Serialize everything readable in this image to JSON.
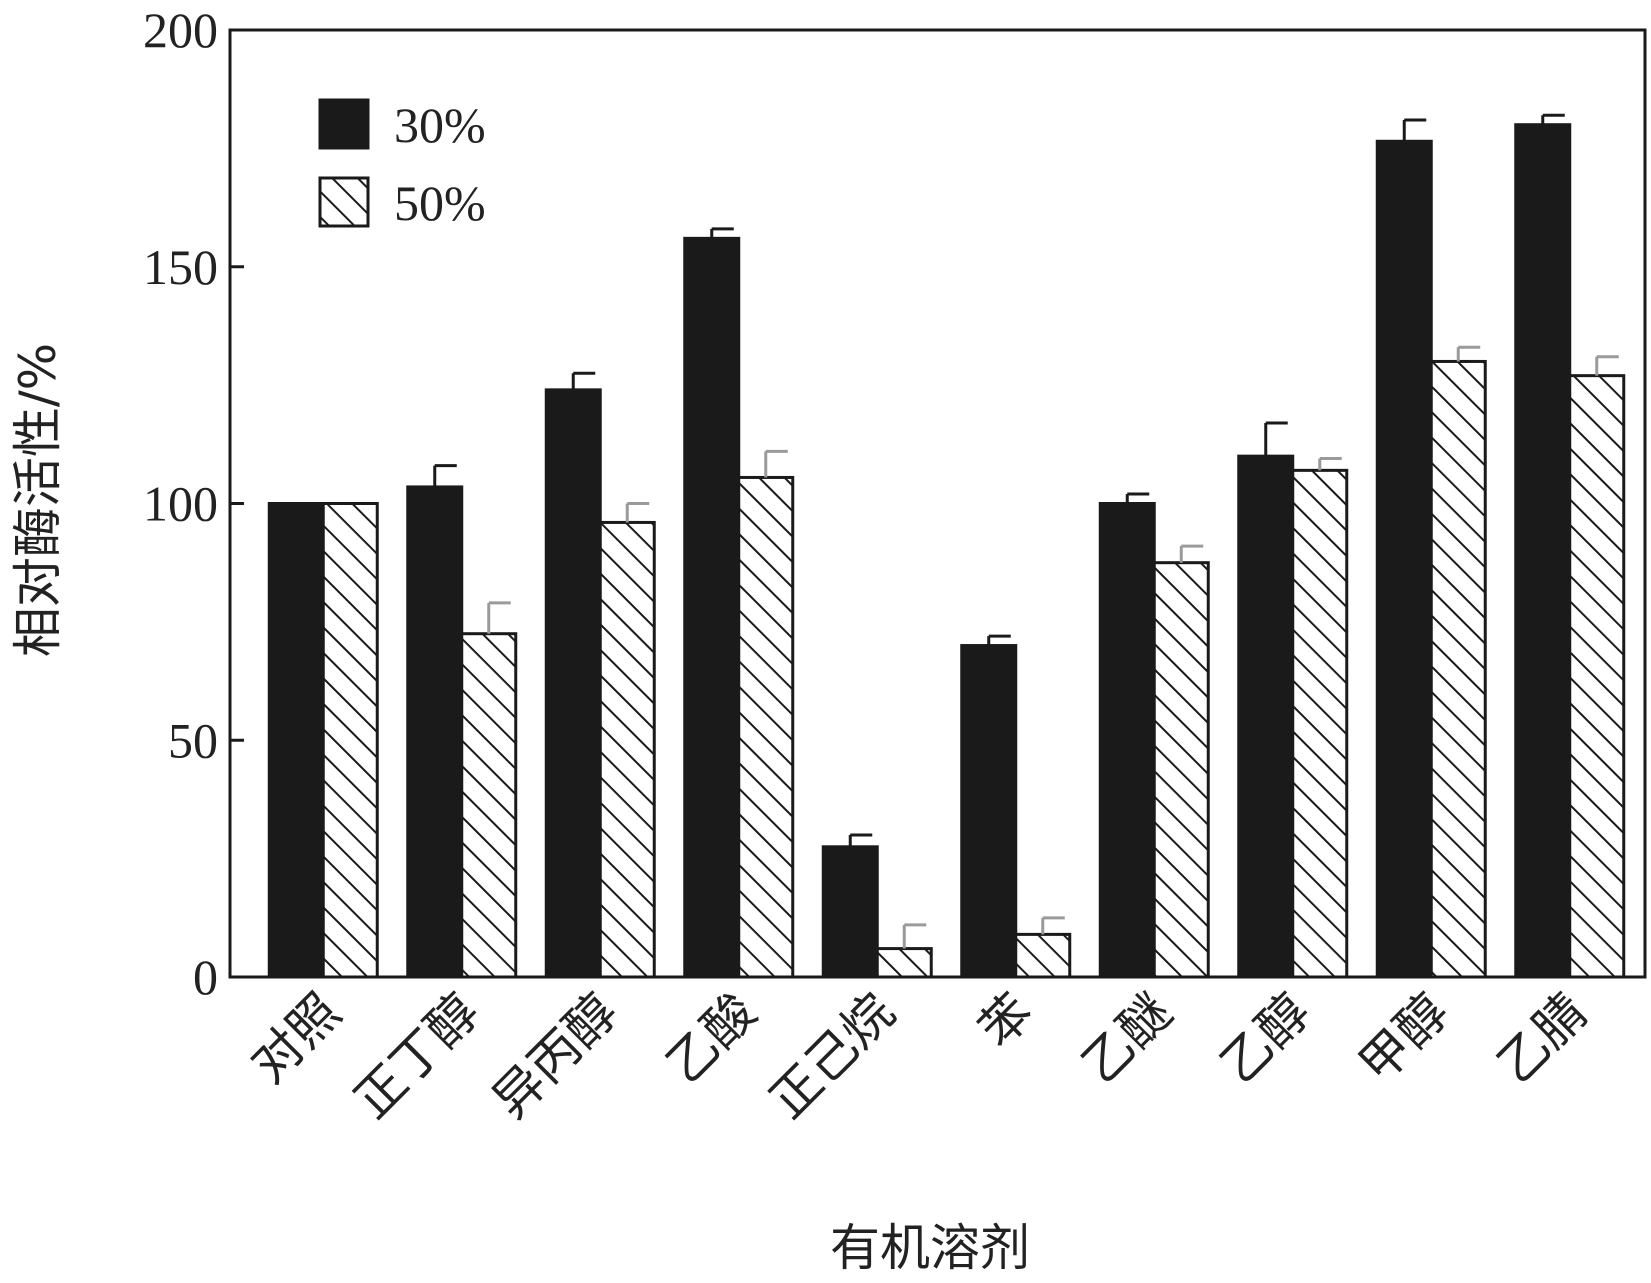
{
  "chart_data": {
    "type": "bar",
    "xlabel": "有机溶剂",
    "ylabel": "相对酶活性/%",
    "ylim": [
      0,
      200
    ],
    "yticks": [
      0,
      50,
      100,
      150,
      200
    ],
    "grid": false,
    "legend_position": "top-left",
    "categories": [
      "对照",
      "正丁醇",
      "异丙醇",
      "乙酸",
      "正己烷",
      "苯",
      "乙醚",
      "乙醇",
      "甲醇",
      "乙腈"
    ],
    "series": [
      {
        "name": "30%",
        "fill": "solid",
        "color": "#1a1a1a",
        "values": [
          100,
          103.5,
          124,
          156,
          27.5,
          70,
          100,
          110,
          176.5,
          180
        ],
        "errors": [
          0,
          4.5,
          3.5,
          2,
          2.5,
          2,
          2,
          7,
          4.5,
          2
        ]
      },
      {
        "name": "50%",
        "fill": "hatched",
        "color": "#1a1a1a",
        "values": [
          100,
          72.5,
          96,
          105.5,
          6,
          9,
          87.5,
          107,
          130,
          127
        ],
        "errors": [
          0,
          6.5,
          4,
          5.5,
          5,
          3.5,
          3.5,
          2.5,
          3,
          4
        ]
      }
    ]
  }
}
